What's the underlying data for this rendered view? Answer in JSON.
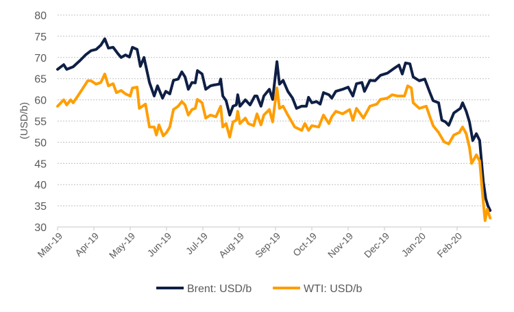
{
  "chart_data": {
    "type": "line",
    "title": "",
    "xlabel": "",
    "ylabel": "(USD/b)",
    "ylim": [
      30,
      80
    ],
    "yticks": [
      "30",
      "35",
      "40",
      "45",
      "50",
      "55",
      "60",
      "65",
      "70",
      "75",
      "80"
    ],
    "x_unit": "months since Mar-19",
    "xlim": [
      0,
      11.91
    ],
    "xticks": [
      "Mar-19",
      "Apr-19",
      "May-19",
      "Jun-19",
      "Jul-19",
      "Aug-19",
      "Sep-19",
      "Oct-19",
      "Nov-19",
      "Dec-19",
      "Jan-20",
      "Feb-20"
    ],
    "grid": "horizontal dotted",
    "legend_position": "bottom",
    "series": [
      {
        "name": "Brent: USD/b",
        "color": "#0f1f45",
        "points": [
          [
            0,
            67.2
          ],
          [
            0.17,
            68.3
          ],
          [
            0.25,
            67.2
          ],
          [
            0.43,
            67.8
          ],
          [
            0.62,
            69.3
          ],
          [
            0.77,
            70.6
          ],
          [
            0.92,
            71.6
          ],
          [
            1.06,
            71.9
          ],
          [
            1.19,
            72.9
          ],
          [
            1.3,
            74.4
          ],
          [
            1.4,
            72.2
          ],
          [
            1.53,
            72.4
          ],
          [
            1.66,
            70.9
          ],
          [
            1.75,
            70.0
          ],
          [
            1.87,
            70.6
          ],
          [
            1.98,
            70.1
          ],
          [
            2.06,
            72.4
          ],
          [
            2.19,
            71.9
          ],
          [
            2.28,
            67.9
          ],
          [
            2.38,
            70.0
          ],
          [
            2.43,
            68.0
          ],
          [
            2.53,
            64.1
          ],
          [
            2.66,
            60.9
          ],
          [
            2.75,
            63.3
          ],
          [
            2.89,
            60.4
          ],
          [
            2.98,
            62.0
          ],
          [
            3.09,
            61.4
          ],
          [
            3.19,
            64.6
          ],
          [
            3.32,
            64.9
          ],
          [
            3.42,
            66.6
          ],
          [
            3.51,
            65.4
          ],
          [
            3.6,
            62.5
          ],
          [
            3.7,
            64.1
          ],
          [
            3.79,
            64.0
          ],
          [
            3.85,
            66.9
          ],
          [
            3.98,
            66.1
          ],
          [
            4.08,
            62.5
          ],
          [
            4.21,
            63.3
          ],
          [
            4.3,
            63.5
          ],
          [
            4.45,
            63.7
          ],
          [
            4.49,
            64.9
          ],
          [
            4.55,
            60.9
          ],
          [
            4.64,
            59.8
          ],
          [
            4.74,
            56.4
          ],
          [
            4.83,
            58.5
          ],
          [
            4.92,
            58.8
          ],
          [
            4.96,
            61.2
          ],
          [
            5.02,
            58.5
          ],
          [
            5.17,
            60.0
          ],
          [
            5.3,
            58.8
          ],
          [
            5.43,
            60.9
          ],
          [
            5.49,
            60.9
          ],
          [
            5.6,
            58.5
          ],
          [
            5.68,
            60.9
          ],
          [
            5.83,
            62.5
          ],
          [
            5.92,
            60.1
          ],
          [
            6.04,
            69.0
          ],
          [
            6.11,
            63.7
          ],
          [
            6.21,
            64.6
          ],
          [
            6.34,
            62.0
          ],
          [
            6.47,
            60.4
          ],
          [
            6.58,
            58.0
          ],
          [
            6.72,
            58.5
          ],
          [
            6.85,
            58.5
          ],
          [
            6.91,
            60.6
          ],
          [
            7.0,
            59.3
          ],
          [
            7.13,
            59.6
          ],
          [
            7.23,
            59.0
          ],
          [
            7.32,
            61.7
          ],
          [
            7.47,
            61.2
          ],
          [
            7.55,
            60.4
          ],
          [
            7.66,
            62.0
          ],
          [
            7.85,
            62.5
          ],
          [
            8.0,
            63.0
          ],
          [
            8.13,
            60.9
          ],
          [
            8.23,
            63.8
          ],
          [
            8.38,
            64.1
          ],
          [
            8.45,
            62.0
          ],
          [
            8.6,
            64.6
          ],
          [
            8.74,
            64.5
          ],
          [
            8.89,
            65.8
          ],
          [
            9.08,
            66.3
          ],
          [
            9.26,
            67.4
          ],
          [
            9.4,
            68.2
          ],
          [
            9.49,
            66.1
          ],
          [
            9.58,
            68.7
          ],
          [
            9.7,
            68.5
          ],
          [
            9.79,
            65.4
          ],
          [
            9.96,
            64.5
          ],
          [
            10.11,
            64.9
          ],
          [
            10.25,
            61.7
          ],
          [
            10.34,
            59.8
          ],
          [
            10.49,
            59.3
          ],
          [
            10.58,
            55.2
          ],
          [
            10.68,
            54.8
          ],
          [
            10.77,
            54.0
          ],
          [
            10.91,
            56.9
          ],
          [
            11.09,
            58.0
          ],
          [
            11.15,
            59.3
          ],
          [
            11.25,
            57.3
          ],
          [
            11.34,
            54.8
          ],
          [
            11.43,
            50.4
          ],
          [
            11.53,
            52.0
          ],
          [
            11.62,
            50.4
          ],
          [
            11.72,
            40.7
          ],
          [
            11.79,
            36.6
          ],
          [
            11.85,
            35.0
          ],
          [
            11.91,
            33.9
          ]
        ]
      },
      {
        "name": "WTI: USD/b",
        "color": "#ff9e00",
        "points": [
          [
            0,
            58.5
          ],
          [
            0.17,
            60.0
          ],
          [
            0.25,
            58.8
          ],
          [
            0.36,
            60.0
          ],
          [
            0.43,
            59.3
          ],
          [
            0.58,
            61.2
          ],
          [
            0.68,
            62.5
          ],
          [
            0.83,
            64.5
          ],
          [
            0.92,
            64.5
          ],
          [
            1.06,
            63.7
          ],
          [
            1.19,
            64.1
          ],
          [
            1.3,
            66.1
          ],
          [
            1.4,
            63.3
          ],
          [
            1.53,
            63.8
          ],
          [
            1.62,
            61.7
          ],
          [
            1.75,
            62.2
          ],
          [
            1.87,
            61.4
          ],
          [
            2.0,
            60.9
          ],
          [
            2.06,
            62.8
          ],
          [
            2.19,
            63.0
          ],
          [
            2.25,
            58.0
          ],
          [
            2.42,
            59.0
          ],
          [
            2.53,
            53.6
          ],
          [
            2.66,
            53.6
          ],
          [
            2.72,
            51.7
          ],
          [
            2.79,
            54.1
          ],
          [
            2.91,
            51.5
          ],
          [
            3.0,
            52.3
          ],
          [
            3.09,
            53.6
          ],
          [
            3.19,
            57.7
          ],
          [
            3.32,
            58.5
          ],
          [
            3.42,
            59.6
          ],
          [
            3.51,
            58.8
          ],
          [
            3.6,
            56.4
          ],
          [
            3.7,
            57.7
          ],
          [
            3.79,
            58.0
          ],
          [
            3.85,
            60.1
          ],
          [
            3.98,
            59.3
          ],
          [
            4.08,
            55.7
          ],
          [
            4.21,
            56.4
          ],
          [
            4.36,
            56.0
          ],
          [
            4.49,
            58.5
          ],
          [
            4.55,
            53.6
          ],
          [
            4.64,
            54.4
          ],
          [
            4.74,
            51.2
          ],
          [
            4.83,
            54.8
          ],
          [
            4.92,
            55.2
          ],
          [
            4.96,
            57.3
          ],
          [
            5.02,
            54.4
          ],
          [
            5.17,
            55.7
          ],
          [
            5.25,
            54.4
          ],
          [
            5.4,
            53.9
          ],
          [
            5.49,
            56.7
          ],
          [
            5.6,
            54.1
          ],
          [
            5.68,
            56.4
          ],
          [
            5.83,
            57.7
          ],
          [
            5.92,
            54.8
          ],
          [
            6.04,
            62.8
          ],
          [
            6.11,
            58.0
          ],
          [
            6.21,
            58.5
          ],
          [
            6.34,
            56.4
          ],
          [
            6.53,
            53.6
          ],
          [
            6.72,
            52.8
          ],
          [
            6.81,
            54.4
          ],
          [
            6.91,
            52.8
          ],
          [
            7.0,
            53.9
          ],
          [
            7.19,
            53.6
          ],
          [
            7.32,
            56.4
          ],
          [
            7.47,
            54.4
          ],
          [
            7.55,
            56.0
          ],
          [
            7.66,
            57.3
          ],
          [
            7.85,
            56.7
          ],
          [
            8.04,
            57.7
          ],
          [
            8.13,
            55.2
          ],
          [
            8.23,
            58.0
          ],
          [
            8.42,
            55.7
          ],
          [
            8.6,
            58.5
          ],
          [
            8.79,
            59.0
          ],
          [
            8.89,
            60.1
          ],
          [
            9.08,
            60.4
          ],
          [
            9.21,
            61.2
          ],
          [
            9.36,
            60.9
          ],
          [
            9.55,
            60.9
          ],
          [
            9.64,
            63.3
          ],
          [
            9.74,
            62.8
          ],
          [
            9.79,
            59.3
          ],
          [
            9.96,
            58.0
          ],
          [
            10.15,
            58.5
          ],
          [
            10.25,
            56.0
          ],
          [
            10.34,
            53.9
          ],
          [
            10.49,
            52.3
          ],
          [
            10.64,
            50.1
          ],
          [
            10.77,
            49.6
          ],
          [
            10.91,
            51.7
          ],
          [
            11.06,
            52.3
          ],
          [
            11.15,
            53.6
          ],
          [
            11.25,
            52.0
          ],
          [
            11.34,
            48.8
          ],
          [
            11.4,
            45.0
          ],
          [
            11.53,
            47.0
          ],
          [
            11.62,
            45.6
          ],
          [
            11.72,
            35.8
          ],
          [
            11.77,
            31.5
          ],
          [
            11.83,
            34.2
          ],
          [
            11.91,
            32.1
          ]
        ]
      }
    ]
  }
}
